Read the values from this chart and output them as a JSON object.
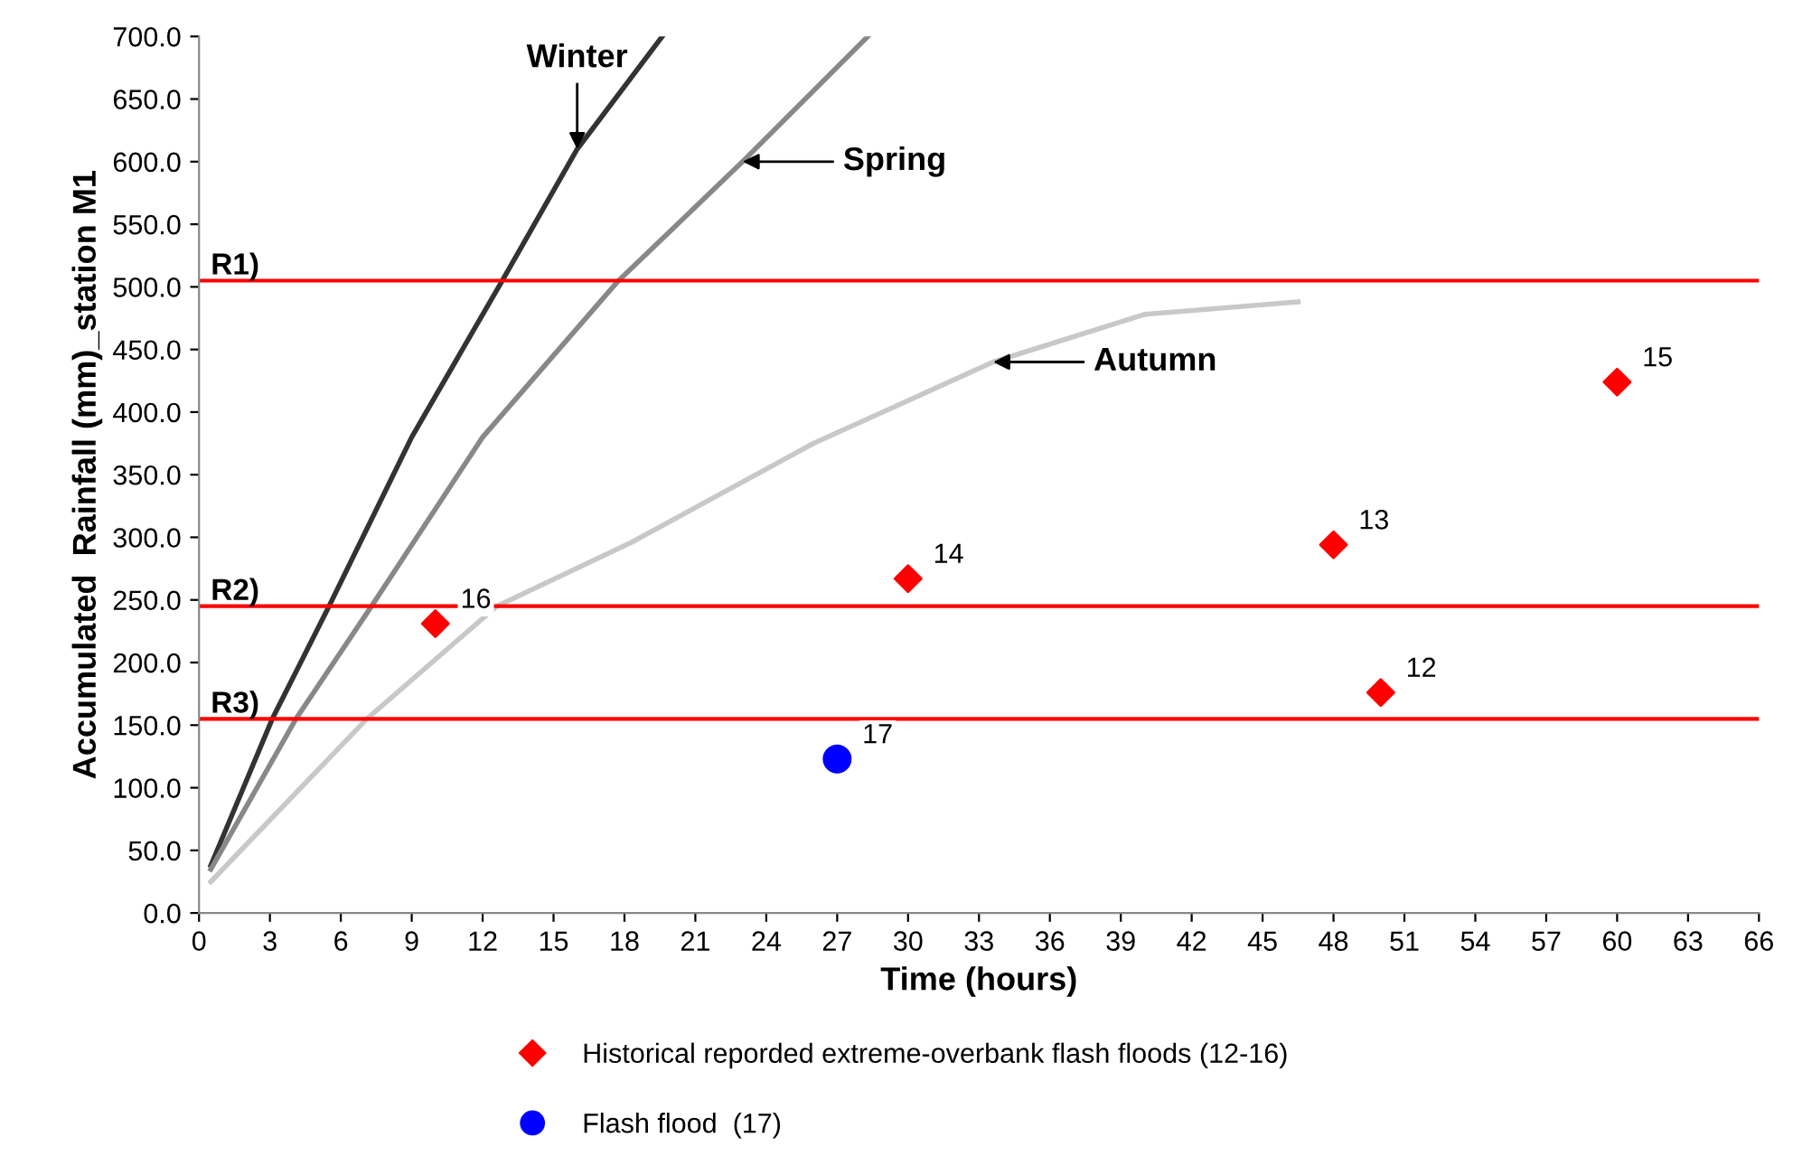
{
  "chart_data": {
    "type": "line",
    "xlabel": "Time (hours)",
    "ylabel": "Accumulated  Rainfall (mm)_station M1",
    "series": [
      {
        "color": "#333333",
        "x": [
          0.5,
          3.1,
          5.5,
          9,
          12.8,
          16,
          19.6
        ],
        "values": [
          38,
          155,
          245,
          380,
          504,
          610,
          700
        ]
      },
      {
        "color": "#888888",
        "x": [
          0.5,
          4.1,
          7.3,
          12,
          17.7,
          23,
          28.3
        ],
        "values": [
          35,
          155,
          245,
          380,
          504,
          600,
          700
        ]
      },
      {
        "color": "#c8c8c8",
        "x": [
          0.5,
          7.1,
          12.6,
          18.3,
          26,
          33.6,
          40,
          46.5
        ],
        "values": [
          25,
          155,
          245,
          296,
          375,
          440,
          478,
          488
        ]
      },
      {
        "type": "scatter",
        "name": "Historical reporded extreme-overbank flash floods (12-16)",
        "color": "#ff0000",
        "marker": "diamond",
        "x": [
          10,
          30,
          48,
          50,
          60
        ],
        "values": [
          231,
          267,
          294,
          176,
          424
        ]
      },
      {
        "type": "scatter",
        "name": "Flash flood  (17)",
        "color": "#0000ff",
        "marker": "circle",
        "x": [
          27
        ],
        "values": [
          123
        ]
      }
    ],
    "annotations": [
      {
        "text": "Winter",
        "x": 16,
        "y": 610
      },
      {
        "text": "Spring",
        "x": 23,
        "y": 600
      },
      {
        "text": "Autumn",
        "x": 33.6,
        "y": 440
      },
      {
        "text": "16",
        "x": 10,
        "y": 231
      },
      {
        "text": "14",
        "x": 30,
        "y": 267
      },
      {
        "text": "13",
        "x": 48,
        "y": 294
      },
      {
        "text": "12",
        "x": 50,
        "y": 176
      },
      {
        "text": "15",
        "x": 60,
        "y": 424
      },
      {
        "text": "17",
        "x": 27,
        "y": 123
      }
    ],
    "ref_lines": [
      {
        "axis": "y",
        "value": 505,
        "label": "R1)",
        "color": "#ff0000"
      },
      {
        "axis": "y",
        "value": 245,
        "label": "R2)",
        "color": "#ff0000"
      },
      {
        "axis": "y",
        "value": 155,
        "label": "R3)",
        "color": "#ff0000"
      }
    ],
    "xlim": [
      0,
      66
    ],
    "xticks": [
      0,
      3,
      6,
      9,
      12,
      15,
      18,
      21,
      24,
      27,
      30,
      33,
      36,
      39,
      42,
      45,
      48,
      51,
      54,
      57,
      60,
      63,
      66
    ],
    "ylim": [
      0,
      700
    ],
    "yticks": [
      {
        "value": 0,
        "label": "0.0"
      },
      {
        "value": 50,
        "label": "50.0"
      },
      {
        "value": 100,
        "label": "100.0"
      },
      {
        "value": 150,
        "label": "150.0"
      },
      {
        "value": 200,
        "label": "200.0"
      },
      {
        "value": 250,
        "label": "250.0"
      },
      {
        "value": 300,
        "label": "300.0"
      },
      {
        "value": 350,
        "label": "350.0"
      },
      {
        "value": 400,
        "label": "400.0"
      },
      {
        "value": 450,
        "label": "450.0"
      },
      {
        "value": 500,
        "label": "500.0"
      },
      {
        "value": 550,
        "label": "550.0"
      },
      {
        "value": 600,
        "label": "600.0"
      },
      {
        "value": 650,
        "label": "650.0"
      },
      {
        "value": 700,
        "label": "700.0"
      }
    ],
    "grid": false,
    "legend": "bottom",
    "line_style": "solid"
  }
}
